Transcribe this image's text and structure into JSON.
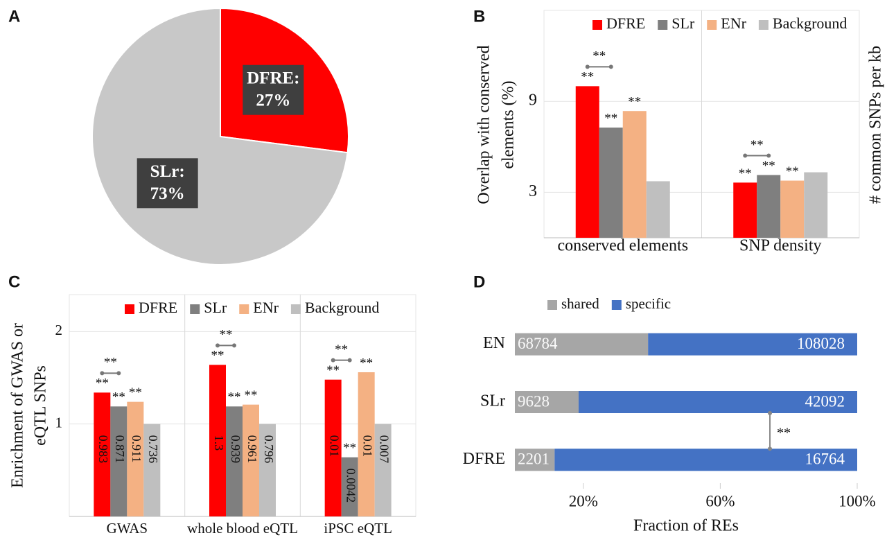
{
  "chart_data": [
    {
      "type": "pie",
      "panel": "A",
      "categories": [
        "DFRE:",
        "SLr:"
      ],
      "values": [
        27,
        73
      ],
      "value_labels": [
        "27%",
        "73%"
      ],
      "colors": [
        "#ff0000",
        "#c8c8c8"
      ]
    },
    {
      "type": "bar",
      "panel": "B",
      "ylabel": [
        "Overlap with conserved",
        "elements (%)"
      ],
      "y2label": "# common SNPs per kb",
      "categories": [
        "conserved elements",
        "SNP density"
      ],
      "series": [
        {
          "name": "DFRE",
          "color": "#ff0000",
          "values": [
            10.0,
            3.64
          ]
        },
        {
          "name": "SLr",
          "color": "#7f7f7f",
          "values": [
            7.27,
            4.14
          ]
        },
        {
          "name": "ENr",
          "color": "#f4b183",
          "values": [
            8.36,
            3.77
          ]
        },
        {
          "name": "Background",
          "color": "#bfbfbf",
          "values": [
            3.73,
            4.32
          ]
        }
      ],
      "ylim": [
        0,
        15
      ],
      "yticks": [
        3,
        9
      ],
      "annotation": "**",
      "legend": "top"
    },
    {
      "type": "bar",
      "panel": "C",
      "ylabel": [
        "Enrichment of GWAS or",
        "eQTL SNPs"
      ],
      "categories": [
        "GWAS",
        "whole blood eQTL",
        "iPSC eQTL"
      ],
      "series": [
        {
          "name": "DFRE",
          "color": "#ff0000",
          "values": [
            1.34,
            1.64,
            1.48
          ],
          "bar_labels": [
            "0.983",
            "1.3",
            "0.01"
          ]
        },
        {
          "name": "SLr",
          "color": "#7f7f7f",
          "values": [
            1.19,
            1.19,
            0.64
          ],
          "bar_labels": [
            "0.871",
            "0.939",
            "0.0042"
          ]
        },
        {
          "name": "ENr",
          "color": "#f4b183",
          "values": [
            1.24,
            1.21,
            1.56
          ],
          "bar_labels": [
            "0.911",
            "0.961",
            "0.01"
          ]
        },
        {
          "name": "Background",
          "color": "#bfbfbf",
          "values": [
            1.0,
            1.0,
            1.0
          ],
          "bar_labels": [
            "0.736",
            "0.796",
            "0.007"
          ]
        }
      ],
      "ylim": [
        0,
        2.4
      ],
      "yticks": [
        1,
        2
      ],
      "annotation": "**",
      "legend": "top"
    },
    {
      "type": "stacked100",
      "panel": "D",
      "orientation": "horizontal",
      "categories": [
        "EN",
        "SLr",
        "DFRE"
      ],
      "series": [
        {
          "name": "shared",
          "color": "#a6a6a6",
          "values": [
            68784,
            9628,
            2201
          ]
        },
        {
          "name": "specific",
          "color": "#4472c4",
          "values": [
            108028,
            42092,
            16764
          ]
        }
      ],
      "xlabel": "Fraction of REs",
      "xlim": [
        0,
        100
      ],
      "xticks": [
        {
          "value": 20,
          "label": "20%"
        },
        {
          "value": 60,
          "label": "60%"
        },
        {
          "value": 100,
          "label": "100%"
        }
      ],
      "annotation": "**",
      "legend": "top"
    }
  ]
}
